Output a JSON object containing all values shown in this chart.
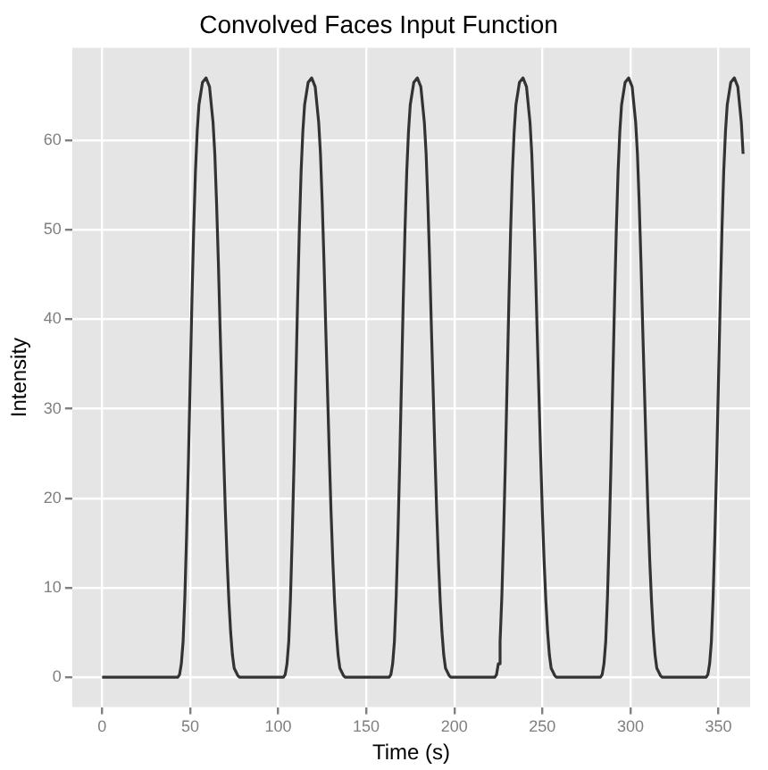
{
  "chart_data": {
    "type": "line",
    "title": "Convolved Faces Input Function",
    "xlabel": "Time (s)",
    "ylabel": "Intensity",
    "x": [
      0,
      43,
      44,
      45,
      46,
      47,
      48,
      49,
      50,
      51,
      52,
      53,
      54,
      55,
      57,
      59,
      61,
      63,
      64,
      65,
      66,
      67,
      68,
      69,
      70,
      71,
      72,
      73,
      74,
      75,
      77,
      78,
      103,
      104,
      105,
      106,
      107,
      108,
      109,
      110,
      111,
      112,
      113,
      114,
      115,
      117,
      119,
      121,
      123,
      124,
      125,
      126,
      127,
      128,
      129,
      130,
      131,
      132,
      133,
      134,
      135,
      137,
      138,
      163,
      164,
      165,
      166,
      167,
      168,
      169,
      170,
      171,
      172,
      173,
      174,
      175,
      177,
      179,
      181,
      183,
      184,
      185,
      186,
      187,
      188,
      189,
      190,
      191,
      192,
      193,
      194,
      195,
      197,
      198,
      223,
      224,
      225,
      226,
      227,
      228,
      229,
      230,
      231,
      232,
      233,
      234,
      235,
      237,
      239,
      241,
      243,
      244,
      245,
      246,
      247,
      248,
      249,
      250,
      251,
      252,
      253,
      254,
      255,
      257,
      258,
      283,
      284,
      285,
      286,
      287,
      288,
      289,
      290,
      291,
      292,
      293,
      294,
      295,
      297,
      299,
      301,
      303,
      304,
      305,
      306,
      307,
      308,
      309,
      310,
      311,
      312,
      313,
      314,
      315,
      317,
      318,
      343,
      344,
      345,
      346,
      347,
      348,
      349,
      350,
      351,
      352,
      353,
      354,
      355,
      357,
      359,
      361,
      363,
      364
    ],
    "series": [
      {
        "color": "#333333",
        "values": [
          0,
          0,
          0.3,
          1.5,
          4,
          9,
          16,
          24,
          33,
          42,
          50,
          56.5,
          61,
          64,
          66.5,
          67,
          66,
          62,
          58.5,
          53,
          46.5,
          39,
          32,
          25,
          18.5,
          13,
          8.5,
          5,
          2.5,
          1,
          0.2,
          0,
          0,
          0.3,
          1.5,
          4,
          9,
          16,
          24,
          33,
          42,
          50,
          56.5,
          61,
          64,
          66.5,
          67,
          66,
          62,
          58.5,
          53,
          46.5,
          39,
          32,
          25,
          18.5,
          13,
          8.5,
          5,
          2.5,
          1,
          0.2,
          0,
          0,
          0.3,
          1.5,
          4,
          9,
          16,
          24,
          33,
          42,
          50,
          56.5,
          61,
          64,
          66.5,
          67,
          66,
          62,
          58.5,
          53,
          46.5,
          39,
          32,
          25,
          18.5,
          13,
          8.5,
          5,
          2.5,
          1,
          0.2,
          0,
          0,
          0.3,
          1.5,
          4,
          9,
          16,
          24,
          33,
          42,
          50,
          56.5,
          61,
          64,
          66.5,
          67,
          66,
          62,
          58.5,
          53,
          46.5,
          39,
          32,
          25,
          18.5,
          13,
          8.5,
          5,
          2.5,
          1,
          0.2,
          0,
          0,
          0.3,
          1.5,
          4,
          9,
          16,
          24,
          33,
          42,
          50,
          56.5,
          61,
          64,
          66.5,
          67,
          66,
          62,
          58.5,
          53,
          46.5,
          39,
          32,
          25,
          18.5,
          13,
          8.5,
          5,
          2.5,
          1,
          0.2,
          0,
          0,
          0.3,
          1.5,
          4,
          9,
          16,
          24,
          33,
          42,
          50,
          56.5,
          61,
          64,
          66.5,
          67,
          66,
          62,
          58.5
        ]
      }
    ],
    "xlim": [
      -17,
      368
    ],
    "xticks": [
      0,
      50,
      100,
      150,
      200,
      250,
      300,
      350
    ],
    "ylim": [
      -3.35,
      70.35
    ],
    "yticks": [
      0,
      10,
      20,
      30,
      40,
      50,
      60
    ],
    "grid": true,
    "legend": false,
    "marker": "none",
    "line_style": "solid"
  }
}
